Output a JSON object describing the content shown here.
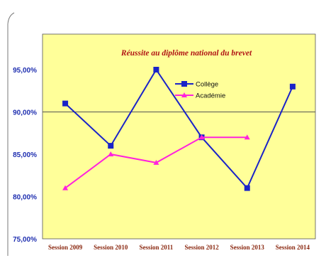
{
  "chart_data": {
    "type": "line",
    "title": "Réussite au diplôme national du brevet",
    "categories": [
      "Session 2009",
      "Session 2010",
      "Session 2011",
      "Session 2012",
      "Session 2013",
      "Session 2014"
    ],
    "series": [
      {
        "name": "Collège",
        "values": [
          91,
          86,
          95,
          87,
          81,
          93
        ],
        "color": "#1a23c8",
        "marker": "square"
      },
      {
        "name": "Académie",
        "values": [
          81,
          85,
          84,
          87,
          87,
          null
        ],
        "color": "#ff22dd",
        "marker": "triangle"
      }
    ],
    "ylim": [
      75,
      95
    ],
    "yticks": [
      "95,00%",
      "90,00%",
      "85,00%",
      "80,00%",
      "75,00%"
    ],
    "ytick_values": [
      95,
      90,
      85,
      80,
      75
    ],
    "highlight_line": 90,
    "legend_position": "top-right",
    "grid": false
  },
  "colors": {
    "plot_background": "#ffff99",
    "axis_text": "#1f2fb0",
    "category_text": "#8b2a12",
    "title": "#b01414"
  }
}
